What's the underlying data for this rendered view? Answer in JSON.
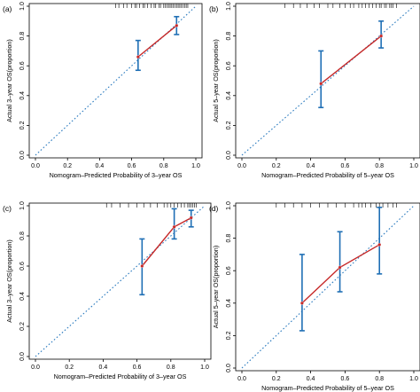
{
  "chart_data": [
    {
      "type": "scatter",
      "panel_label": "(a)",
      "xlabel": "Nomogram–Predicted Probability of 3–year OS",
      "ylabel": "Actual 3–year OS(proportion)",
      "xlim": [
        0,
        1
      ],
      "ylim": [
        0,
        1
      ],
      "xticks": [
        "0.0",
        "0.2",
        "0.4",
        "0.6",
        "0.8",
        "1.0"
      ],
      "yticks": [
        "0.0",
        "0.2",
        "0.4",
        "0.6",
        "0.8",
        "1.0"
      ],
      "reference_line": "y = x",
      "points": [
        {
          "x": 0.64,
          "y": 0.66,
          "lower": 0.57,
          "upper": 0.77
        },
        {
          "x": 0.88,
          "y": 0.87,
          "lower": 0.81,
          "upper": 0.93
        }
      ],
      "rug_x": [
        0.5,
        0.52,
        0.55,
        0.57,
        0.6,
        0.62,
        0.63,
        0.65,
        0.67,
        0.68,
        0.7,
        0.72,
        0.74,
        0.75,
        0.77,
        0.78,
        0.8,
        0.81,
        0.82,
        0.83,
        0.84,
        0.85,
        0.86,
        0.87,
        0.88,
        0.89,
        0.9,
        0.91,
        0.92,
        0.93,
        0.94,
        0.95
      ]
    },
    {
      "type": "scatter",
      "panel_label": "(b)",
      "xlabel": "Nomogram–Predicted Probability of 5–year OS",
      "ylabel": "Actual 5–year OS(proportion)",
      "xlim": [
        0,
        1
      ],
      "ylim": [
        0,
        1
      ],
      "xticks": [
        "0.0",
        "0.2",
        "0.4",
        "0.6",
        "0.8",
        "1.0"
      ],
      "yticks": [
        "0.0",
        "0.2",
        "0.4",
        "0.6",
        "0.8",
        "1.0"
      ],
      "reference_line": "y = x",
      "points": [
        {
          "x": 0.46,
          "y": 0.48,
          "lower": 0.32,
          "upper": 0.7
        },
        {
          "x": 0.81,
          "y": 0.8,
          "lower": 0.72,
          "upper": 0.9
        }
      ],
      "rug_x": [
        0.25,
        0.3,
        0.34,
        0.38,
        0.42,
        0.45,
        0.5,
        0.53,
        0.57,
        0.6,
        0.63,
        0.65,
        0.68,
        0.7,
        0.72,
        0.74,
        0.76,
        0.78,
        0.8,
        0.81,
        0.83,
        0.84,
        0.86,
        0.87,
        0.88,
        0.9
      ]
    },
    {
      "type": "scatter",
      "panel_label": "(c)",
      "xlabel": "Nomogram–Predicted Probability of 3–year OS",
      "ylabel": "Actual 3–year OS(proportion)",
      "xlim": [
        0,
        1
      ],
      "ylim": [
        0,
        1
      ],
      "xticks": [
        "0.0",
        "0.2",
        "0.4",
        "0.6",
        "0.8",
        "1.0"
      ],
      "yticks": [
        "0.0",
        "0.2",
        "0.4",
        "0.6",
        "0.8",
        "1.0"
      ],
      "reference_line": "y = x",
      "points": [
        {
          "x": 0.63,
          "y": 0.6,
          "lower": 0.41,
          "upper": 0.78
        },
        {
          "x": 0.82,
          "y": 0.86,
          "lower": 0.78,
          "upper": 0.98
        },
        {
          "x": 0.92,
          "y": 0.92,
          "lower": 0.86,
          "upper": 0.97
        }
      ],
      "rug_x": [
        0.42,
        0.45,
        0.5,
        0.55,
        0.6,
        0.64,
        0.68,
        0.72,
        0.76,
        0.78,
        0.8,
        0.82,
        0.84,
        0.86,
        0.88,
        0.9,
        0.91,
        0.92,
        0.93,
        0.94,
        0.95
      ]
    },
    {
      "type": "scatter",
      "panel_label": "(d)",
      "xlabel": "Nomogram–Predicted Probability of 5–year OS",
      "ylabel": "Actual 5–year OS(proportion)",
      "xlim": [
        0,
        1
      ],
      "ylim": [
        0,
        1
      ],
      "xticks": [
        "0.0",
        "0.2",
        "0.4",
        "0.6",
        "0.8",
        "1.0"
      ],
      "yticks": [
        "0.0",
        "0.2",
        "0.4",
        "0.6",
        "0.8",
        "1.0"
      ],
      "reference_line": "y = x",
      "points": [
        {
          "x": 0.35,
          "y": 0.4,
          "lower": 0.23,
          "upper": 0.7
        },
        {
          "x": 0.57,
          "y": 0.62,
          "lower": 0.47,
          "upper": 0.84
        },
        {
          "x": 0.8,
          "y": 0.76,
          "lower": 0.58,
          "upper": 0.99
        }
      ],
      "rug_x": [
        0.2,
        0.25,
        0.3,
        0.35,
        0.4,
        0.45,
        0.5,
        0.55,
        0.6,
        0.65,
        0.68,
        0.7,
        0.72,
        0.75,
        0.78,
        0.8,
        0.82,
        0.85,
        0.88,
        0.9
      ]
    }
  ]
}
